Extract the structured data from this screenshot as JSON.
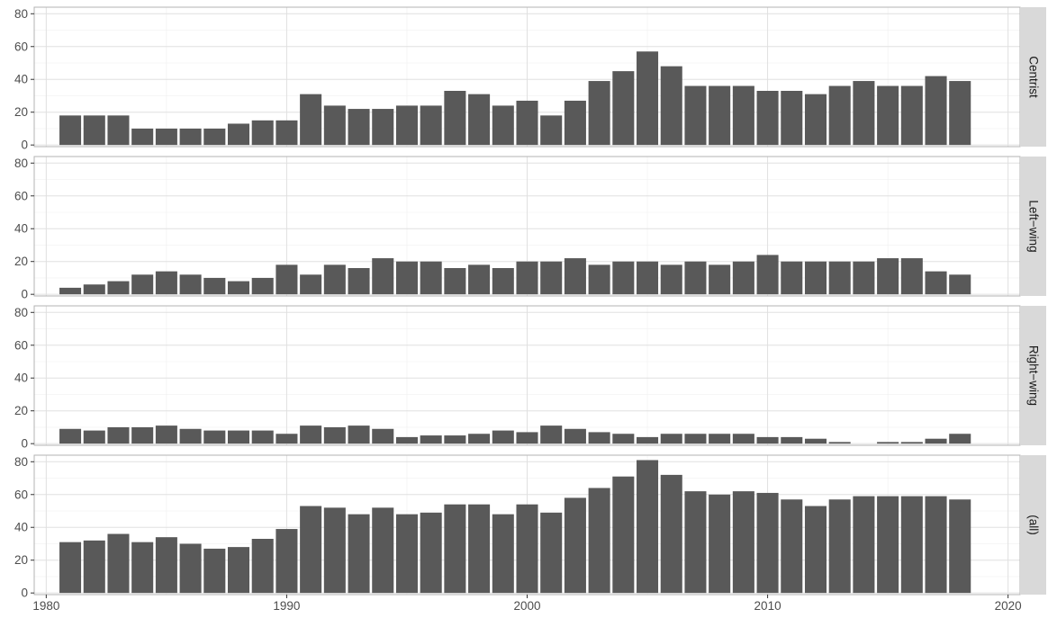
{
  "chart_data": {
    "type": "bar",
    "facet_layout": "stacked-rows",
    "x": [
      1981,
      1982,
      1983,
      1984,
      1985,
      1986,
      1987,
      1988,
      1989,
      1990,
      1991,
      1992,
      1993,
      1994,
      1995,
      1996,
      1997,
      1998,
      1999,
      2000,
      2001,
      2002,
      2003,
      2004,
      2005,
      2006,
      2007,
      2008,
      2009,
      2010,
      2011,
      2012,
      2013,
      2014,
      2015,
      2016,
      2017,
      2018
    ],
    "xlim": [
      1979.5,
      2020.5
    ],
    "x_ticks": [
      "1980",
      "1990",
      "2000",
      "2010",
      "2020"
    ],
    "ylim": [
      -1,
      84
    ],
    "y_ticks": [
      "0",
      "20",
      "40",
      "60",
      "80"
    ],
    "grid": true,
    "colors": {
      "bar": "#595959",
      "panel_border": "#b3b3b3",
      "grid_major": "#e0e0e0",
      "grid_minor": "#f0f0f0",
      "strip_fill": "#d9d9d9",
      "background": "#ffffff"
    },
    "panels": [
      {
        "label": "Centrist",
        "values": [
          18,
          18,
          18,
          10,
          10,
          10,
          10,
          13,
          15,
          15,
          31,
          24,
          22,
          22,
          24,
          24,
          33,
          31,
          24,
          27,
          18,
          27,
          39,
          45,
          57,
          48,
          36,
          36,
          36,
          33,
          33,
          31,
          36,
          39,
          36,
          36,
          42,
          39
        ]
      },
      {
        "label": "Left−wing",
        "values": [
          4,
          6,
          8,
          12,
          14,
          12,
          10,
          8,
          10,
          18,
          12,
          18,
          16,
          22,
          20,
          20,
          16,
          18,
          16,
          20,
          20,
          22,
          18,
          20,
          20,
          18,
          20,
          18,
          20,
          24,
          20,
          20,
          20,
          20,
          22,
          22,
          14,
          12
        ]
      },
      {
        "label": "Right−wing",
        "values": [
          9,
          8,
          10,
          10,
          11,
          9,
          8,
          8,
          8,
          6,
          11,
          10,
          11,
          9,
          4,
          5,
          5,
          6,
          8,
          7,
          11,
          9,
          7,
          6,
          4,
          6,
          6,
          6,
          6,
          4,
          4,
          3,
          1,
          0,
          1,
          1,
          3,
          6
        ]
      },
      {
        "label": "(all)",
        "values": [
          31,
          32,
          36,
          31,
          34,
          30,
          27,
          28,
          33,
          39,
          53,
          52,
          48,
          52,
          48,
          49,
          54,
          54,
          48,
          54,
          49,
          58,
          64,
          71,
          81,
          72,
          62,
          60,
          62,
          61,
          57,
          53,
          57,
          59,
          59,
          59,
          59,
          57
        ]
      }
    ]
  }
}
